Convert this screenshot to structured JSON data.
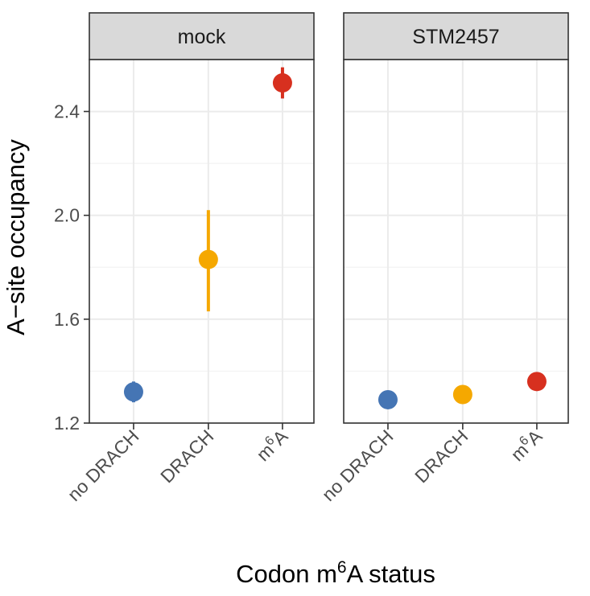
{
  "chart_data": {
    "type": "scatter",
    "xlabel": "Codon m6A status",
    "ylabel": "A−site occupancy",
    "ylim": [
      1.2,
      2.6
    ],
    "yticks": [
      "1.2",
      "1.6",
      "2.0",
      "2.4"
    ],
    "categories": [
      {
        "key": "no_drach",
        "label": "no DRACH"
      },
      {
        "key": "drach",
        "label": "DRACH"
      },
      {
        "key": "m6a",
        "label": "m",
        "sup": "6",
        "suffix": "A"
      }
    ],
    "panels": [
      {
        "title": "mock",
        "points": [
          {
            "category": "no DRACH",
            "y": 1.32,
            "ymin": 1.28,
            "ymax": 1.36,
            "color": "#4575b4"
          },
          {
            "category": "DRACH",
            "y": 1.83,
            "ymin": 1.63,
            "ymax": 2.02,
            "color": "#f5a800"
          },
          {
            "category": "m6A",
            "y": 2.51,
            "ymin": 2.45,
            "ymax": 2.57,
            "color": "#d7301f"
          }
        ]
      },
      {
        "title": "STM2457",
        "points": [
          {
            "category": "no DRACH",
            "y": 1.29,
            "ymin": 1.28,
            "ymax": 1.3,
            "color": "#4575b4"
          },
          {
            "category": "DRACH",
            "y": 1.31,
            "ymin": 1.3,
            "ymax": 1.32,
            "color": "#f5a800"
          },
          {
            "category": "m6A",
            "y": 1.36,
            "ymin": 1.35,
            "ymax": 1.37,
            "color": "#d7301f"
          }
        ]
      }
    ],
    "grid": true
  },
  "labels": {
    "xtitle_pre": "Codon m",
    "xtitle_sup": "6",
    "xtitle_post": "A status"
  }
}
